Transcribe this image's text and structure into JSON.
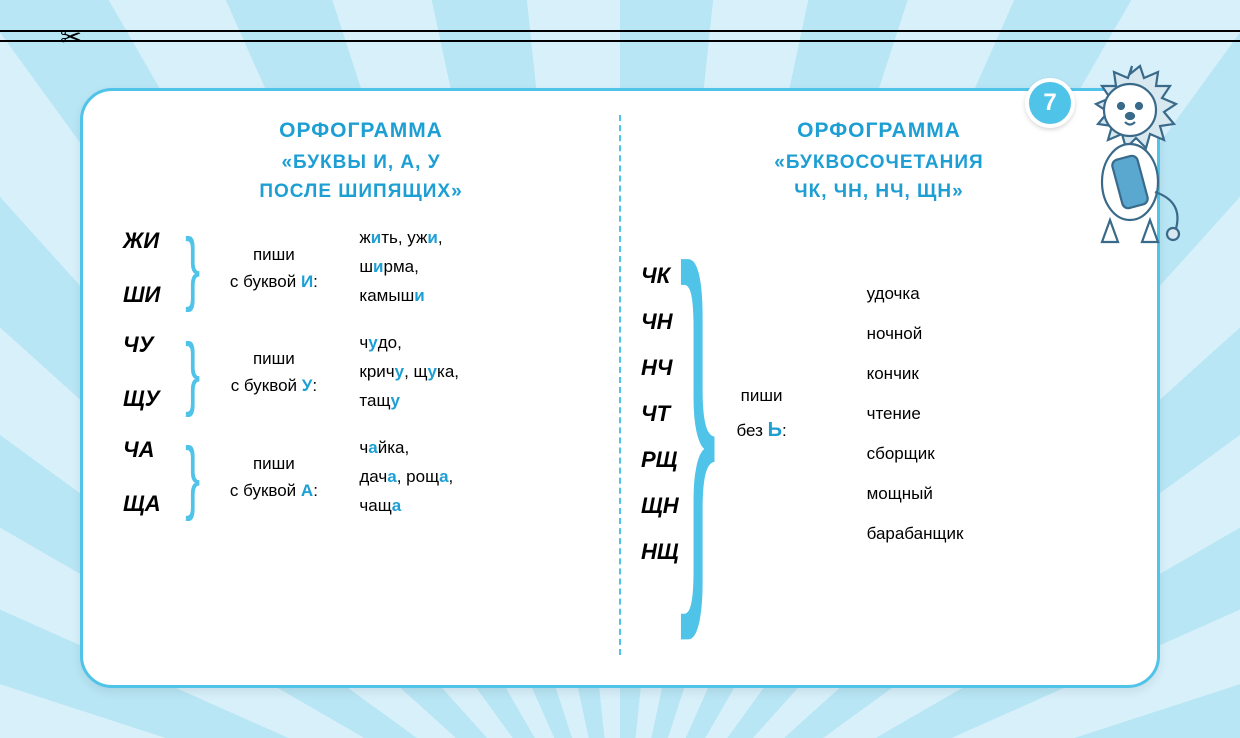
{
  "page_number": "7",
  "colors": {
    "accent": "#4fc3e8",
    "heading": "#1d9fd4",
    "bg_light": "#d8f0fa",
    "bg_dark": "#b8e6f5",
    "text": "#000000",
    "card_bg": "#ffffff"
  },
  "left": {
    "title_l1": "ОРФОГРАММА",
    "title_l2": "«БУКВЫ   И,   А,   У",
    "title_l3": "ПОСЛЕ   ШИПЯЩИХ»",
    "groups": [
      {
        "syllables": [
          "ЖИ",
          "ШИ"
        ],
        "rule_l1": "пиши",
        "rule_l2_pre": "с  буквой  ",
        "rule_letter": "И",
        "rule_l2_post": ":",
        "examples_html": "ж<b class='hl'>и</b>ть,  уж<b class='hl'>и</b>,<br>ш<b class='hl'>и</b>рма,<br>камыш<b class='hl'>и</b>"
      },
      {
        "syllables": [
          "ЧУ",
          "ЩУ"
        ],
        "rule_l1": "пиши",
        "rule_l2_pre": "с  буквой  ",
        "rule_letter": "У",
        "rule_l2_post": ":",
        "examples_html": "ч<b class='hl'>у</b>до,<br>крич<b class='hl'>у</b>,  щ<b class='hl'>у</b>ка,<br>тащ<b class='hl'>у</b>"
      },
      {
        "syllables": [
          "ЧА",
          "ЩА"
        ],
        "rule_l1": "пиши",
        "rule_l2_pre": "с  буквой  ",
        "rule_letter": "А",
        "rule_l2_post": ":",
        "examples_html": "ч<b class='hl'>а</b>йка,<br>дач<b class='hl'>а</b>,  рощ<b class='hl'>а</b>,<br>чащ<b class='hl'>а</b>"
      }
    ]
  },
  "right": {
    "title_l1": "ОРФОГРАММА",
    "title_l2": "«БУКВОСОЧЕТАНИЯ",
    "title_l3": "ЧК,   ЧН,   НЧ,   ЩН»",
    "syllables": [
      "ЧК",
      "ЧН",
      "НЧ",
      "ЧТ",
      "РЩ",
      "ЩН",
      "НЩ"
    ],
    "rule_l1": "пиши",
    "rule_l2_pre": "без  ",
    "rule_sign": "Ь",
    "rule_l2_post": ":",
    "examples": [
      "удочка",
      "ночной",
      "кончик",
      "чтение",
      "сборщик",
      "мощный",
      "барабанщик"
    ]
  }
}
